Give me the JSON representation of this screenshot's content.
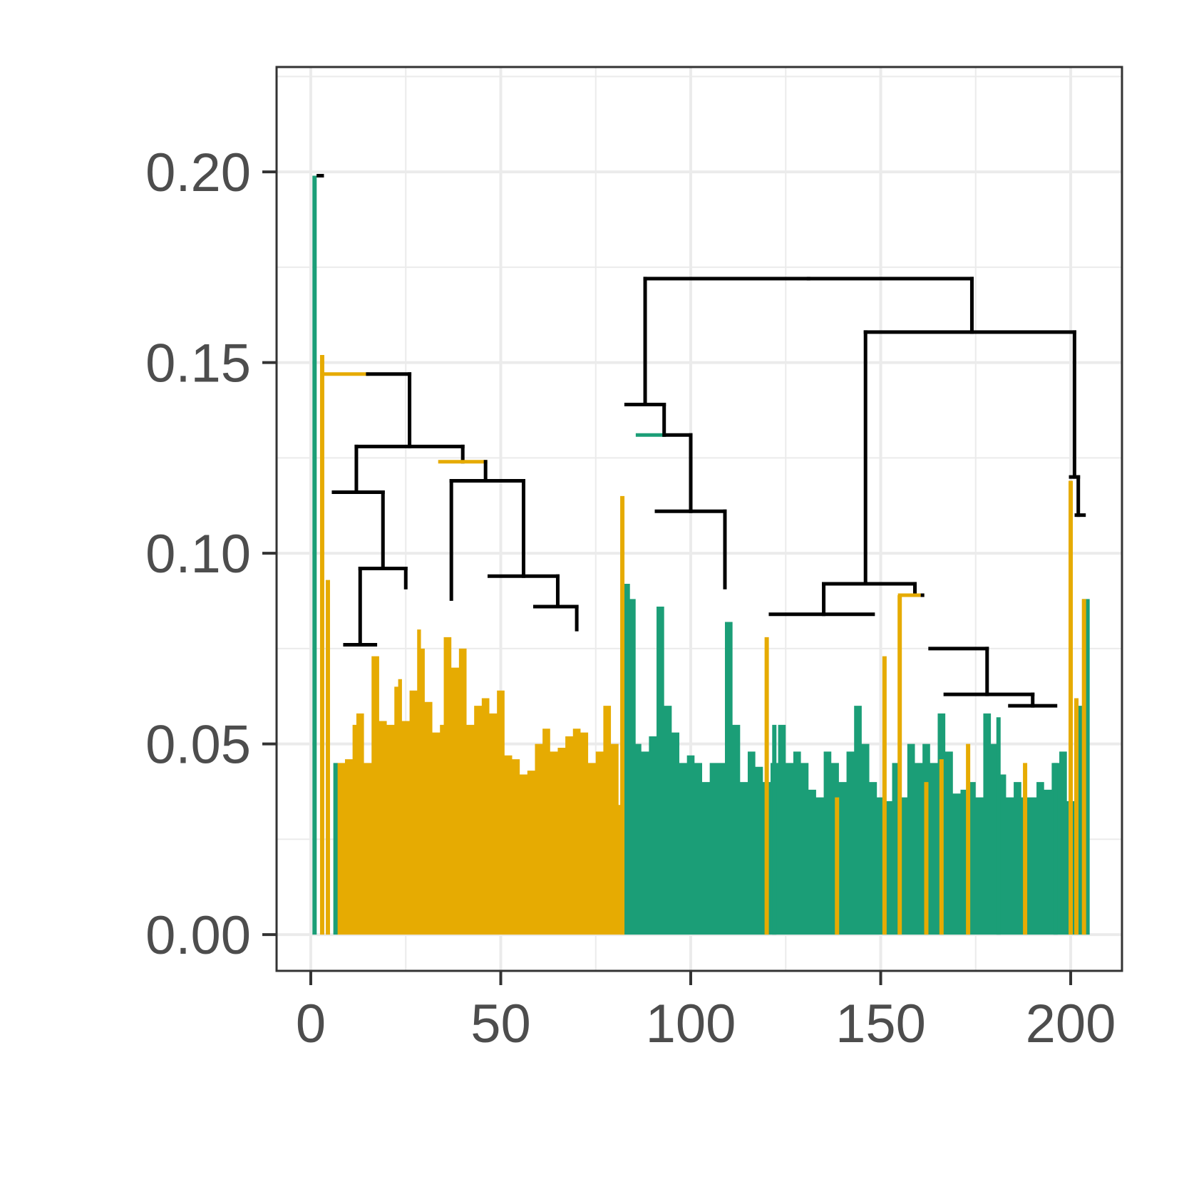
{
  "chart_data": {
    "type": "dendrogram",
    "title": "",
    "xlabel": "",
    "ylabel": "",
    "xlim": [
      -9,
      213.5
    ],
    "ylim": [
      -0.0095,
      0.2275
    ],
    "grid": true,
    "legend": "none",
    "x_ticks": [
      0,
      50,
      100,
      150,
      200
    ],
    "x_tick_labels": [
      "0",
      "50",
      "100",
      "150",
      "200"
    ],
    "y_ticks": [
      0.0,
      0.05,
      0.1,
      0.15,
      0.2
    ],
    "y_tick_labels": [
      "0.00",
      "0.05",
      "0.10",
      "0.15",
      "0.20"
    ],
    "colors": {
      "green": "#1b9e77",
      "gold": "#e6ab02",
      "merge": "#000000",
      "grid": "#ebebeb",
      "axis": "#333333",
      "tick_text": "#4d4d4d"
    },
    "leaves": [
      {
        "x": 1,
        "height": 0.199,
        "color": "green"
      },
      {
        "x": 3,
        "height": 0.152,
        "color": "gold"
      },
      {
        "x": 4.5,
        "height": 0.093,
        "color": "gold"
      },
      {
        "x": 6.5,
        "height": 0.045,
        "color": "green"
      },
      {
        "x": 82,
        "height": 0.115,
        "color": "gold"
      },
      {
        "x": 120,
        "height": 0.078,
        "color": "gold"
      },
      {
        "x": 122,
        "height": 0.055,
        "color": "green"
      },
      {
        "x": 138.5,
        "height": 0.036,
        "color": "gold"
      },
      {
        "x": 151,
        "height": 0.073,
        "color": "gold"
      },
      {
        "x": 155,
        "height": 0.089,
        "color": "gold"
      },
      {
        "x": 162,
        "height": 0.04,
        "color": "gold"
      },
      {
        "x": 166,
        "height": 0.046,
        "color": "gold"
      },
      {
        "x": 173,
        "height": 0.05,
        "color": "gold"
      },
      {
        "x": 181,
        "height": 0.057,
        "color": "green"
      },
      {
        "x": 188,
        "height": 0.045,
        "color": "gold"
      },
      {
        "x": 196,
        "height": 0.045,
        "color": "green"
      },
      {
        "x": 200,
        "height": 0.119,
        "color": "gold"
      },
      {
        "x": 201.5,
        "height": 0.062,
        "color": "gold"
      },
      {
        "x": 203.5,
        "height": 0.088,
        "color": "gold"
      }
    ],
    "leaf_regions": [
      {
        "color": "gold",
        "x_start": 7,
        "x_end": 82.5,
        "points": [
          [
            7,
            0.045
          ],
          [
            9,
            0.046
          ],
          [
            11,
            0.055
          ],
          [
            12,
            0.058
          ],
          [
            14,
            0.045
          ],
          [
            16,
            0.073
          ],
          [
            18,
            0.056
          ],
          [
            20,
            0.055
          ],
          [
            22,
            0.065
          ],
          [
            23,
            0.067
          ],
          [
            24,
            0.056
          ],
          [
            26,
            0.064
          ],
          [
            28,
            0.08
          ],
          [
            29,
            0.075
          ],
          [
            30,
            0.061
          ],
          [
            32,
            0.053
          ],
          [
            34,
            0.055
          ],
          [
            35,
            0.078
          ],
          [
            37,
            0.07
          ],
          [
            39,
            0.075
          ],
          [
            41,
            0.055
          ],
          [
            43,
            0.06
          ],
          [
            45,
            0.062
          ],
          [
            47,
            0.058
          ],
          [
            49,
            0.064
          ],
          [
            51,
            0.047
          ],
          [
            53,
            0.046
          ],
          [
            55,
            0.042
          ],
          [
            57,
            0.043
          ],
          [
            59,
            0.05
          ],
          [
            61,
            0.054
          ],
          [
            63,
            0.048
          ],
          [
            65,
            0.049
          ],
          [
            67,
            0.052
          ],
          [
            69,
            0.054
          ],
          [
            71,
            0.053
          ],
          [
            73,
            0.045
          ],
          [
            75,
            0.048
          ],
          [
            77,
            0.06
          ],
          [
            79,
            0.05
          ],
          [
            81,
            0.034
          ],
          [
            82.5,
            0.03
          ]
        ]
      },
      {
        "color": "green",
        "x_start": 82.5,
        "x_end": 205,
        "points": [
          [
            82.5,
            0.092
          ],
          [
            84,
            0.088
          ],
          [
            85.5,
            0.05
          ],
          [
            87,
            0.048
          ],
          [
            89,
            0.052
          ],
          [
            91,
            0.086
          ],
          [
            93,
            0.06
          ],
          [
            95,
            0.053
          ],
          [
            97,
            0.045
          ],
          [
            99,
            0.047
          ],
          [
            101,
            0.045
          ],
          [
            103,
            0.04
          ],
          [
            105,
            0.045
          ],
          [
            107,
            0.045
          ],
          [
            109,
            0.082
          ],
          [
            111,
            0.055
          ],
          [
            113,
            0.04
          ],
          [
            115,
            0.048
          ],
          [
            117,
            0.044
          ],
          [
            119,
            0.04
          ],
          [
            121,
            0.045
          ],
          [
            123,
            0.055
          ],
          [
            125,
            0.045
          ],
          [
            127,
            0.048
          ],
          [
            129,
            0.045
          ],
          [
            131,
            0.038
          ],
          [
            133,
            0.036
          ],
          [
            135,
            0.048
          ],
          [
            137,
            0.045
          ],
          [
            139,
            0.04
          ],
          [
            141,
            0.048
          ],
          [
            143,
            0.06
          ],
          [
            145,
            0.05
          ],
          [
            147,
            0.04
          ],
          [
            149,
            0.036
          ],
          [
            151,
            0.035
          ],
          [
            153,
            0.045
          ],
          [
            155,
            0.036
          ],
          [
            157,
            0.05
          ],
          [
            159,
            0.045
          ],
          [
            161,
            0.05
          ],
          [
            163,
            0.045
          ],
          [
            165,
            0.058
          ],
          [
            167,
            0.048
          ],
          [
            169,
            0.037
          ],
          [
            171,
            0.038
          ],
          [
            173,
            0.04
          ],
          [
            175,
            0.036
          ],
          [
            177,
            0.058
          ],
          [
            179,
            0.05
          ],
          [
            181,
            0.042
          ],
          [
            183,
            0.036
          ],
          [
            185,
            0.04
          ],
          [
            187,
            0.036
          ],
          [
            189,
            0.036
          ],
          [
            191,
            0.04
          ],
          [
            193,
            0.038
          ],
          [
            195,
            0.045
          ],
          [
            197,
            0.048
          ],
          [
            199,
            0.035
          ],
          [
            201,
            0.06
          ],
          [
            203,
            0.088
          ],
          [
            205,
            0.088
          ]
        ]
      }
    ],
    "merges": [
      {
        "x": [
          2,
          3
        ],
        "heights": [
          0.199,
          0.199
        ]
      },
      {
        "x": [
          3,
          15
        ],
        "heights": [
          0.147,
          0.147
        ],
        "color": "gold"
      },
      {
        "x": [
          15,
          26
        ],
        "heights": [
          0.147,
          0.147
        ]
      },
      {
        "x": [
          26,
          26
        ],
        "heights": [
          0.147,
          0.128
        ]
      },
      {
        "x": [
          12,
          40
        ],
        "heights": [
          0.128,
          0.128
        ]
      },
      {
        "x": [
          40,
          40
        ],
        "heights": [
          0.128,
          0.124
        ]
      },
      {
        "x": [
          12,
          12
        ],
        "heights": [
          0.128,
          0.116
        ]
      },
      {
        "x": [
          6,
          19
        ],
        "heights": [
          0.116,
          0.116
        ]
      },
      {
        "x": [
          19,
          19
        ],
        "heights": [
          0.116,
          0.096
        ]
      },
      {
        "x": [
          13,
          25
        ],
        "heights": [
          0.096,
          0.096
        ]
      },
      {
        "x": [
          25,
          25
        ],
        "heights": [
          0.096,
          0.091
        ]
      },
      {
        "x": [
          13,
          13
        ],
        "heights": [
          0.096,
          0.076
        ]
      },
      {
        "x": [
          9,
          17
        ],
        "heights": [
          0.076,
          0.076
        ]
      },
      {
        "x": [
          34,
          46
        ],
        "heights": [
          0.124,
          0.124
        ],
        "color": "gold"
      },
      {
        "x": [
          46,
          46
        ],
        "heights": [
          0.124,
          0.119
        ]
      },
      {
        "x": [
          37,
          56
        ],
        "heights": [
          0.119,
          0.119
        ]
      },
      {
        "x": [
          56,
          56
        ],
        "heights": [
          0.119,
          0.094
        ]
      },
      {
        "x": [
          47,
          65
        ],
        "heights": [
          0.094,
          0.094
        ]
      },
      {
        "x": [
          65,
          65
        ],
        "heights": [
          0.094,
          0.086
        ]
      },
      {
        "x": [
          59,
          70
        ],
        "heights": [
          0.086,
          0.086
        ]
      },
      {
        "x": [
          70,
          70
        ],
        "heights": [
          0.086,
          0.08
        ]
      },
      {
        "x": [
          37,
          37
        ],
        "heights": [
          0.119,
          0.088
        ]
      },
      {
        "x": [
          88,
          131
        ],
        "heights": [
          0.172,
          0.172
        ]
      },
      {
        "x": [
          131,
          174
        ],
        "heights": [
          0.172,
          0.172
        ]
      },
      {
        "x": [
          88,
          88
        ],
        "heights": [
          0.172,
          0.139
        ]
      },
      {
        "x": [
          83,
          93
        ],
        "heights": [
          0.139,
          0.139
        ]
      },
      {
        "x": [
          93,
          93
        ],
        "heights": [
          0.139,
          0.131
        ]
      },
      {
        "x": [
          86,
          93
        ],
        "heights": [
          0.131,
          0.131
        ],
        "color": "green"
      },
      {
        "x": [
          93,
          100
        ],
        "heights": [
          0.131,
          0.131
        ]
      },
      {
        "x": [
          100,
          100
        ],
        "heights": [
          0.131,
          0.111
        ]
      },
      {
        "x": [
          91,
          109
        ],
        "heights": [
          0.111,
          0.111
        ]
      },
      {
        "x": [
          109,
          109
        ],
        "heights": [
          0.111,
          0.091
        ]
      },
      {
        "x": [
          174,
          174
        ],
        "heights": [
          0.172,
          0.158
        ]
      },
      {
        "x": [
          146,
          201
        ],
        "heights": [
          0.158,
          0.158
        ]
      },
      {
        "x": [
          146,
          146
        ],
        "heights": [
          0.158,
          0.092
        ]
      },
      {
        "x": [
          135,
          159
        ],
        "heights": [
          0.092,
          0.092
        ]
      },
      {
        "x": [
          135,
          135
        ],
        "heights": [
          0.092,
          0.084
        ]
      },
      {
        "x": [
          121,
          148
        ],
        "heights": [
          0.084,
          0.084
        ]
      },
      {
        "x": [
          159,
          159
        ],
        "heights": [
          0.092,
          0.089
        ]
      },
      {
        "x": [
          155,
          161
        ],
        "heights": [
          0.089,
          0.089
        ],
        "color": "gold"
      },
      {
        "x": [
          161,
          161
        ],
        "heights": [
          0.089,
          0.089
        ]
      },
      {
        "x": [
          163,
          178
        ],
        "heights": [
          0.075,
          0.075
        ]
      },
      {
        "x": [
          178,
          178
        ],
        "heights": [
          0.075,
          0.063
        ]
      },
      {
        "x": [
          167,
          190
        ],
        "heights": [
          0.063,
          0.063
        ]
      },
      {
        "x": [
          190,
          190
        ],
        "heights": [
          0.063,
          0.06
        ]
      },
      {
        "x": [
          184,
          196
        ],
        "heights": [
          0.06,
          0.06
        ]
      },
      {
        "x": [
          201,
          201
        ],
        "heights": [
          0.158,
          0.12
        ]
      },
      {
        "x": [
          200,
          202
        ],
        "heights": [
          0.12,
          0.12
        ]
      },
      {
        "x": [
          202,
          202
        ],
        "heights": [
          0.12,
          0.11
        ]
      },
      {
        "x": [
          201.5,
          203.5
        ],
        "heights": [
          0.11,
          0.11
        ]
      }
    ]
  }
}
